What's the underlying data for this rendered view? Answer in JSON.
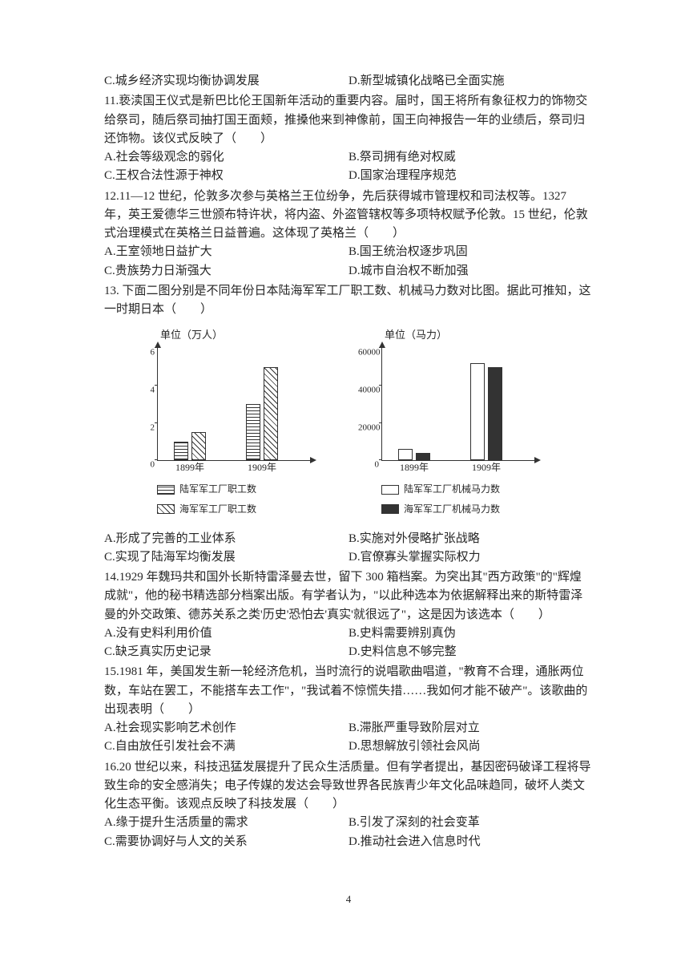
{
  "options_top": {
    "c": "C.城乡经济实现均衡协调发展",
    "d": "D.新型城镇化战略已全面实施"
  },
  "q11": {
    "text": "11.亵渎国王仪式是新巴比伦王国新年活动的重要内容。届时，国王将所有象征权力的饰物交给祭司，随后祭司抽打国王面颊，推搡他来到神像前，国王向神报告一年的业绩后，祭司归还饰物。该仪式反映了（　　）",
    "a": "A.社会等级观念的弱化",
    "b": "B.祭司拥有绝对权威",
    "c": "C.王权合法性源于神权",
    "d": "D.国家治理程序规范"
  },
  "q12": {
    "text": "12.11—12 世纪，伦敦多次参与英格兰王位纷争，先后获得城市管理权和司法权等。1327 年，英王爱德华三世颁布特许状，将内盗、外盗管辖权等多项特权赋予伦敦。15 世纪，伦敦式治理模式在英格兰日益普遍。这体现了英格兰（　　）",
    "a": "A.王室领地日益扩大",
    "b": "B.国王统治权逐步巩固",
    "c": "C.贵族势力日渐强大",
    "d": "D.城市自治权不断加强"
  },
  "q13": {
    "text": "13. 下面二图分别是不同年份日本陆海军军工厂职工数、机械马力数对比图。据此可推知，这一时期日本（　　）",
    "a": "A.形成了完善的工业体系",
    "b": "B.实施对外侵略扩张战略",
    "c": "C.实现了陆海军均衡发展",
    "d": "D.官僚寡头掌握实际权力"
  },
  "chart1": {
    "unit": "单位（万人）",
    "ymax": 6,
    "yticks": [
      0,
      2,
      4,
      6
    ],
    "categories": [
      "1899年",
      "1909年"
    ],
    "series": [
      {
        "name": "陆军军工厂职工数",
        "pattern": "hstripe",
        "values": [
          1.0,
          3.0
        ]
      },
      {
        "name": "海军军工厂职工数",
        "pattern": "diag",
        "values": [
          1.5,
          5.0
        ]
      }
    ]
  },
  "chart2": {
    "unit": "单位（马力）",
    "ymax": 60000,
    "yticks": [
      0,
      20000,
      40000,
      60000
    ],
    "categories": [
      "1899年",
      "1909年"
    ],
    "series": [
      {
        "name": "陆军军工厂机械马力数",
        "pattern": "hollow",
        "values": [
          6000,
          52000
        ]
      },
      {
        "name": "海军军工厂机械马力数",
        "pattern": "solid",
        "values": [
          4000,
          50000
        ]
      }
    ]
  },
  "q14": {
    "text": "14.1929 年魏玛共和国外长斯特雷泽曼去世，留下 300 箱档案。为突出其\"西方政策\"的\"辉煌成就\"，他的秘书精选部分档案出版。有学者认为，\"以此种选本为依据解释出来的斯特雷泽曼的外交政策、德苏关系之类'历史'恐怕去'真实'就很远了\"，这是因为该选本（　　）",
    "a": "A.没有史料利用价值",
    "b": "B.史料需要辨别真伪",
    "c": "C.缺乏真实历史记录",
    "d": "D.史料信息不够完整"
  },
  "q15": {
    "text": "15.1981 年，美国发生新一轮经济危机，当时流行的说唱歌曲唱道，\"教育不合理，通胀两位数，车站在罢工，不能搭车去工作\"，\"我试着不惊慌失措……我如何才能不破产\"。该歌曲的出现表明（　　）",
    "a": "A.社会现实影响艺术创作",
    "b": "B.滞胀严重导致阶层对立",
    "c": "C.自由放任引发社会不满",
    "d": "D.思想解放引领社会风尚"
  },
  "q16": {
    "text": "16.20 世纪以来，科技迅猛发展提升了民众生活质量。但有学者提出，基因密码破译工程将导致生命的安全感消失；电子传媒的发达会导致世界各民族青少年文化品味趋同，破坏人类文化生态平衡。该观点反映了科技发展（　　）",
    "a": "A.缘于提升生活质量的需求",
    "b": "B.引发了深刻的社会变革",
    "c": "C.需要协调好与人文的关系",
    "d": "D.推动社会进入信息时代"
  },
  "pagenum": "4"
}
